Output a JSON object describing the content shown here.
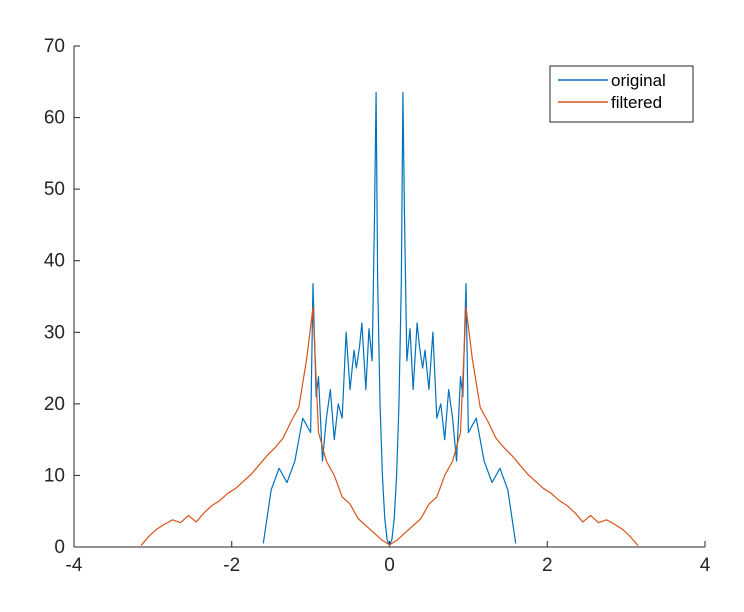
{
  "chart_data": {
    "type": "line",
    "title": "",
    "xlabel": "",
    "ylabel": "",
    "xlim": [
      -4,
      4
    ],
    "ylim": [
      0,
      70
    ],
    "x_ticks": [
      -4,
      -2,
      0,
      2,
      4
    ],
    "x_tick_labels": [
      "-4",
      "-2",
      "0",
      "2",
      "4"
    ],
    "y_ticks": [
      0,
      10,
      20,
      30,
      40,
      50,
      60,
      70
    ],
    "y_tick_labels": [
      "0",
      "10",
      "20",
      "30",
      "40",
      "50",
      "60",
      "70"
    ],
    "grid": false,
    "legend_position": "top-right",
    "series": [
      {
        "name": "original",
        "color": "#0072BD",
        "points": [
          [
            -1.6,
            0.5
          ],
          [
            -1.5,
            8
          ],
          [
            -1.4,
            11
          ],
          [
            -1.3,
            9
          ],
          [
            -1.2,
            12
          ],
          [
            -1.1,
            18
          ],
          [
            -1.0,
            16
          ],
          [
            -0.97,
            36.8
          ],
          [
            -0.93,
            21
          ],
          [
            -0.9,
            23.8
          ],
          [
            -0.85,
            12
          ],
          [
            -0.8,
            18
          ],
          [
            -0.75,
            22
          ],
          [
            -0.7,
            15
          ],
          [
            -0.65,
            20
          ],
          [
            -0.6,
            18
          ],
          [
            -0.55,
            30
          ],
          [
            -0.5,
            22
          ],
          [
            -0.45,
            27.5
          ],
          [
            -0.42,
            25
          ],
          [
            -0.38,
            28
          ],
          [
            -0.35,
            31.3
          ],
          [
            -0.3,
            22
          ],
          [
            -0.26,
            30.5
          ],
          [
            -0.22,
            26
          ],
          [
            -0.19,
            46.3
          ],
          [
            -0.17,
            63.5
          ],
          [
            -0.15,
            37
          ],
          [
            -0.12,
            20
          ],
          [
            -0.09,
            10
          ],
          [
            -0.06,
            4
          ],
          [
            -0.03,
            1
          ],
          [
            0.0,
            0.2
          ],
          [
            0.03,
            1
          ],
          [
            0.06,
            4
          ],
          [
            0.09,
            10
          ],
          [
            0.12,
            20
          ],
          [
            0.15,
            37
          ],
          [
            0.17,
            63.5
          ],
          [
            0.19,
            46.3
          ],
          [
            0.22,
            26
          ],
          [
            0.26,
            30.5
          ],
          [
            0.3,
            22
          ],
          [
            0.35,
            31.3
          ],
          [
            0.38,
            28
          ],
          [
            0.42,
            25
          ],
          [
            0.45,
            27.5
          ],
          [
            0.5,
            22
          ],
          [
            0.55,
            30
          ],
          [
            0.6,
            18
          ],
          [
            0.65,
            20
          ],
          [
            0.7,
            15
          ],
          [
            0.75,
            22
          ],
          [
            0.8,
            18
          ],
          [
            0.85,
            12
          ],
          [
            0.9,
            23.8
          ],
          [
            0.93,
            21
          ],
          [
            0.97,
            36.8
          ],
          [
            1.0,
            16
          ],
          [
            1.1,
            18
          ],
          [
            1.2,
            12
          ],
          [
            1.3,
            9
          ],
          [
            1.4,
            11
          ],
          [
            1.5,
            8
          ],
          [
            1.6,
            0.5
          ]
        ]
      },
      {
        "name": "filtered",
        "color": "#D95319",
        "points": [
          [
            -3.15,
            0.2
          ],
          [
            -3.05,
            1.5
          ],
          [
            -2.95,
            2.5
          ],
          [
            -2.85,
            3.2
          ],
          [
            -2.75,
            3.8
          ],
          [
            -2.65,
            3.4
          ],
          [
            -2.55,
            4.4
          ],
          [
            -2.45,
            3.5
          ],
          [
            -2.35,
            4.8
          ],
          [
            -2.25,
            5.8
          ],
          [
            -2.15,
            6.5
          ],
          [
            -2.05,
            7.5
          ],
          [
            -1.95,
            8.2
          ],
          [
            -1.85,
            9.2
          ],
          [
            -1.75,
            10.2
          ],
          [
            -1.65,
            11.5
          ],
          [
            -1.55,
            12.8
          ],
          [
            -1.45,
            13.9
          ],
          [
            -1.35,
            15.2
          ],
          [
            -1.25,
            17.5
          ],
          [
            -1.15,
            19.5
          ],
          [
            -1.05,
            26.3
          ],
          [
            -0.97,
            33.5
          ],
          [
            -0.9,
            16
          ],
          [
            -0.8,
            12
          ],
          [
            -0.7,
            10
          ],
          [
            -0.6,
            7
          ],
          [
            -0.5,
            6
          ],
          [
            -0.4,
            4
          ],
          [
            -0.3,
            3
          ],
          [
            -0.2,
            2
          ],
          [
            -0.1,
            1
          ],
          [
            0.0,
            0.3
          ],
          [
            0.1,
            1
          ],
          [
            0.2,
            2
          ],
          [
            0.3,
            3
          ],
          [
            0.4,
            4
          ],
          [
            0.5,
            6
          ],
          [
            0.6,
            7
          ],
          [
            0.7,
            10
          ],
          [
            0.8,
            12
          ],
          [
            0.9,
            16
          ],
          [
            0.97,
            33.5
          ],
          [
            1.05,
            26.3
          ],
          [
            1.15,
            19.5
          ],
          [
            1.25,
            17.5
          ],
          [
            1.35,
            15.2
          ],
          [
            1.45,
            13.9
          ],
          [
            1.55,
            12.8
          ],
          [
            1.65,
            11.5
          ],
          [
            1.75,
            10.2
          ],
          [
            1.85,
            9.2
          ],
          [
            1.95,
            8.2
          ],
          [
            2.05,
            7.5
          ],
          [
            2.15,
            6.5
          ],
          [
            2.25,
            5.8
          ],
          [
            2.35,
            4.8
          ],
          [
            2.45,
            3.5
          ],
          [
            2.55,
            4.4
          ],
          [
            2.65,
            3.4
          ],
          [
            2.75,
            3.8
          ],
          [
            2.85,
            3.2
          ],
          [
            2.95,
            2.5
          ],
          [
            3.05,
            1.5
          ],
          [
            3.15,
            0.2
          ]
        ]
      }
    ]
  }
}
